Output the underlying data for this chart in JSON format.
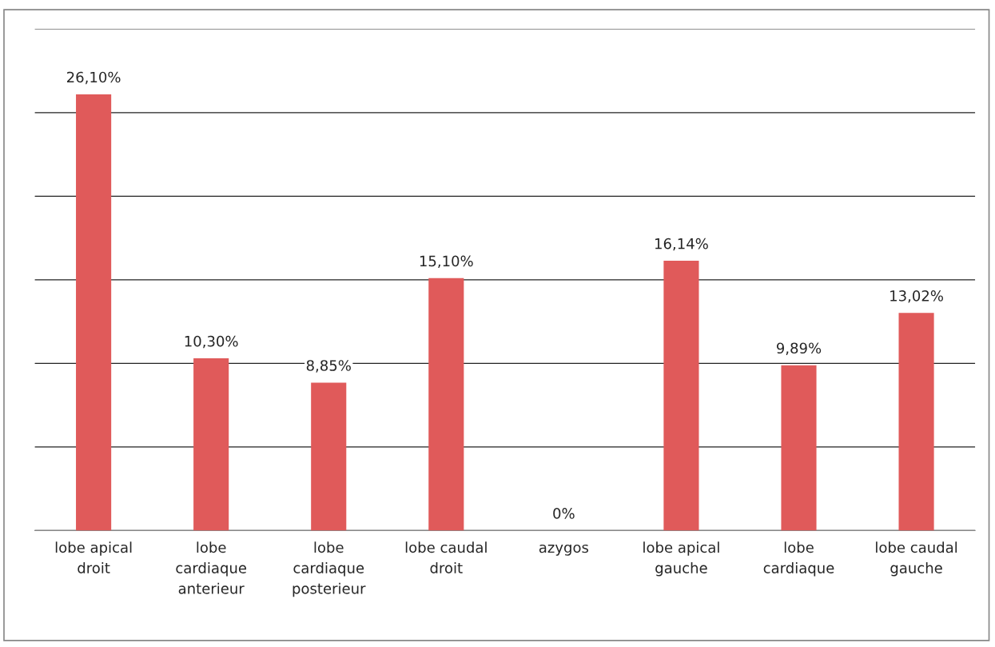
{
  "chart_data": {
    "type": "bar",
    "categories": [
      "lobe apical\ndroit",
      "lobe\ncardiaque\nanterieur",
      "lobe\ncardiaque\nposterieur",
      "lobe caudal\ndroit",
      "azygos",
      "lobe apical\ngauche",
      "lobe\ncardiaque",
      "lobe caudal\ngauche"
    ],
    "values": [
      26.1,
      10.3,
      8.85,
      15.1,
      0,
      16.14,
      9.89,
      13.02
    ],
    "value_labels": [
      "26,10%",
      "10,30%",
      "8,85%",
      "15,10%",
      "0%",
      "16,14%",
      "9,89%",
      "13,02%"
    ],
    "color": "#e05a5a",
    "ylim": [
      0,
      30
    ],
    "yticks": [
      {
        "value": 0,
        "label": null
      },
      {
        "value": 5,
        "label": null
      },
      {
        "value": 10,
        "label": null
      },
      {
        "value": 15,
        "label": null
      },
      {
        "value": 20,
        "label": null
      },
      {
        "value": 25,
        "label": null
      },
      {
        "value": 30,
        "label": null
      }
    ],
    "grid": "y",
    "tick_labels": "x",
    "legend": false
  }
}
